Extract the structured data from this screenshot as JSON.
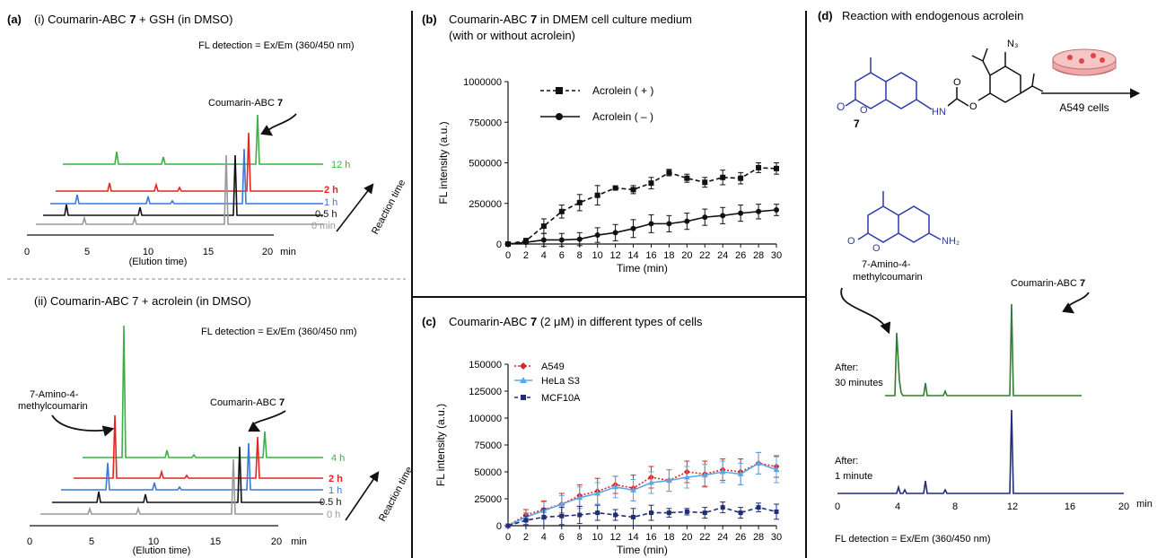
{
  "panel_a": {
    "label": "(a)",
    "sub_i": {
      "title_pre": "(i) Coumarin-ABC ",
      "title_bold": "7",
      "title_post": " + GSH (in DMSO)",
      "detection": "FL detection = Ex/Em (360/450 nm)",
      "annotation_pre": "Coumarin-ABC ",
      "annotation_bold": "7",
      "time_labels": [
        "12 h",
        "2 h",
        "1 h",
        "0.5 h",
        "0 min"
      ],
      "axis_ticks": [
        "0",
        "5",
        "10",
        "15",
        "20"
      ],
      "axis_unit": "min",
      "axis_label": "(Elution time)",
      "arrow_label": "Reaction time"
    },
    "sub_ii": {
      "title": "(ii) Coumarin-ABC 7 + acrolein (in DMSO)",
      "detection": "FL detection = Ex/Em (360/450 nm)",
      "annotation_left": [
        "7-Amino-4-",
        "methylcoumarin"
      ],
      "annotation_right_pre": "Coumarin-ABC ",
      "annotation_right_bold": "7",
      "time_labels": [
        "4 h",
        "2 h",
        "1 h",
        "0.5 h",
        "0 h"
      ],
      "axis_ticks": [
        "0",
        "5",
        "10",
        "15",
        "20"
      ],
      "axis_unit": "min",
      "axis_label": "(Elution time)",
      "arrow_label": "Reaction time"
    }
  },
  "panel_b": {
    "label": "(b)",
    "title_pre": "Coumarin-ABC ",
    "title_bold": "7",
    "title_post": " in DMEM cell culture medium",
    "title_line2": "(with or without acrolein)",
    "legend": [
      "Acrolein ( + )",
      "Acrolein ( – )"
    ]
  },
  "panel_c": {
    "label": "(c)",
    "title_pre": "Coumarin-ABC ",
    "title_bold": "7",
    "title_post": " (2 μM) in different types of cells",
    "legend": [
      "A549",
      "HeLa S3",
      "MCF10A"
    ]
  },
  "panel_d": {
    "label": "(d)",
    "title": "Reaction with endogenous acrolein",
    "compound_number": "7",
    "azide_label": "N₃",
    "nh2_label": "NH₂",
    "hn_label": "HN",
    "o_labels": [
      "O",
      "O",
      "O",
      "O",
      "O",
      "O"
    ],
    "cells_label": "A549 cells",
    "annotation_left": [
      "7-Amino-4-",
      "methylcoumarin"
    ],
    "annotation_right_pre": "Coumarin-ABC ",
    "annotation_right_bold": "7",
    "trace_labels": [
      [
        "After:",
        "30 minutes"
      ],
      [
        "After:",
        "1 minute"
      ]
    ],
    "axis_ticks": [
      "0",
      "4",
      "8",
      "12",
      "16",
      "20"
    ],
    "axis_unit": "min",
    "detection": "FL detection = Ex/Em (360/450 nm)",
    "colors": {
      "blue_structure": "#2b3aa8",
      "green_trace": "#2e7d32",
      "navy_trace": "#1f2d7a"
    }
  },
  "chart_data": [
    {
      "type": "line",
      "panel": "b",
      "xlabel": "Time (min)",
      "ylabel": "FL intensity (a.u.)",
      "x": [
        0,
        2,
        4,
        6,
        8,
        10,
        12,
        14,
        16,
        18,
        20,
        22,
        24,
        26,
        28,
        30
      ],
      "xlim": [
        0,
        30
      ],
      "ylim": [
        0,
        1000000
      ],
      "yticks": [
        "0",
        "250000",
        "500000",
        "750000",
        "1000000"
      ],
      "xticks": [
        "0",
        "2",
        "4",
        "6",
        "8",
        "10",
        "12",
        "14",
        "16",
        "18",
        "20",
        "22",
        "24",
        "26",
        "28",
        "30"
      ],
      "series": [
        {
          "name": "Acrolein ( + )",
          "style": "dashed",
          "marker": "square",
          "color": "#111111",
          "values": [
            0,
            20000,
            110000,
            200000,
            255000,
            300000,
            345000,
            335000,
            375000,
            440000,
            405000,
            380000,
            410000,
            405000,
            470000,
            465000
          ],
          "errors": [
            0,
            15000,
            45000,
            40000,
            50000,
            60000,
            10000,
            25000,
            35000,
            20000,
            25000,
            30000,
            45000,
            35000,
            30000,
            35000
          ]
        },
        {
          "name": "Acrolein ( – )",
          "style": "solid",
          "marker": "circle",
          "color": "#111111",
          "values": [
            0,
            10000,
            25000,
            25000,
            30000,
            55000,
            70000,
            95000,
            125000,
            125000,
            140000,
            165000,
            175000,
            190000,
            200000,
            210000
          ],
          "errors": [
            0,
            10000,
            40000,
            40000,
            40000,
            45000,
            50000,
            55000,
            55000,
            50000,
            50000,
            50000,
            50000,
            50000,
            45000,
            35000
          ]
        }
      ]
    },
    {
      "type": "line",
      "panel": "c",
      "xlabel": "Time (min)",
      "ylabel": "FL intensity (a.u.)",
      "x": [
        0,
        2,
        4,
        6,
        8,
        10,
        12,
        14,
        16,
        18,
        20,
        22,
        24,
        26,
        28,
        30
      ],
      "xlim": [
        0,
        30
      ],
      "ylim": [
        0,
        150000
      ],
      "yticks": [
        "0",
        "25000",
        "50000",
        "75000",
        "100000",
        "125000",
        "150000"
      ],
      "xticks": [
        "0",
        "2",
        "4",
        "6",
        "8",
        "10",
        "12",
        "14",
        "16",
        "18",
        "20",
        "22",
        "24",
        "26",
        "28",
        "30"
      ],
      "series": [
        {
          "name": "A549",
          "style": "dotted",
          "marker": "diamond",
          "color": "#d62728",
          "values": [
            0,
            10000,
            15000,
            20000,
            28000,
            32000,
            38000,
            35000,
            45000,
            42000,
            50000,
            48000,
            52000,
            50000,
            58000,
            55000
          ],
          "errors": [
            0,
            5000,
            8000,
            10000,
            10000,
            12000,
            8000,
            12000,
            10000,
            10000,
            10000,
            12000,
            10000,
            12000,
            10000,
            10000
          ]
        },
        {
          "name": "HeLa S3",
          "style": "solid",
          "marker": "triangle",
          "color": "#5aa9e6",
          "values": [
            0,
            8000,
            14000,
            20000,
            26000,
            30000,
            36000,
            33000,
            40000,
            42000,
            45000,
            47000,
            50000,
            48000,
            58000,
            52000
          ],
          "errors": [
            0,
            4000,
            8000,
            8000,
            10000,
            10000,
            10000,
            10000,
            10000,
            10000,
            10000,
            10000,
            10000,
            10000,
            10000,
            12000
          ]
        },
        {
          "name": "MCF10A",
          "style": "dashed",
          "marker": "square",
          "color": "#1f2d7a",
          "values": [
            0,
            5000,
            8000,
            9000,
            10000,
            12000,
            10000,
            8000,
            12000,
            12000,
            13000,
            12000,
            17000,
            12000,
            17000,
            13000
          ],
          "errors": [
            0,
            4000,
            8000,
            8000,
            8000,
            7000,
            5000,
            8000,
            7000,
            4000,
            3000,
            5000,
            5000,
            5000,
            4000,
            7000
          ]
        }
      ]
    }
  ]
}
